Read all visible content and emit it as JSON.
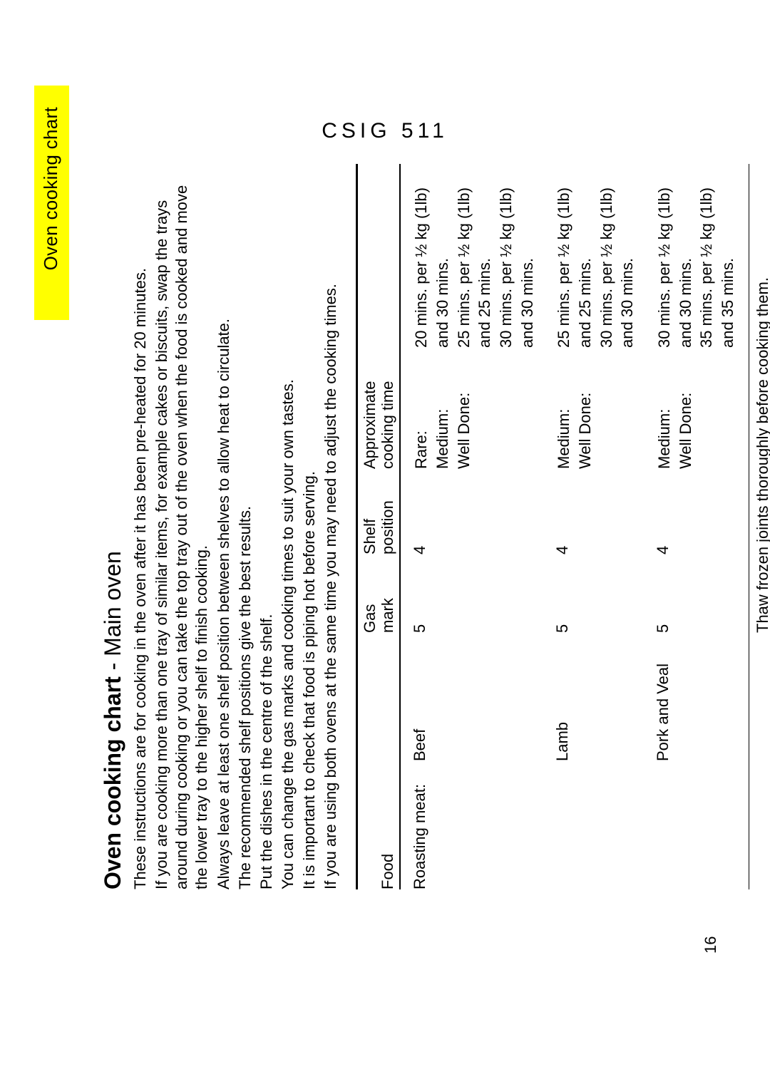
{
  "tab_label": "Oven cooking chart",
  "model_code": "CSIG 511",
  "page_number": "16",
  "title_bold": "Oven cooking chart",
  "title_rest": " - Main oven",
  "instructions": [
    "These instructions are for cooking in the oven after it has been pre-heated for 20 minutes.",
    "If you are cooking more than one tray of similar items, for example cakes or biscuits, swap the trays around during cooking or you can take the top tray out of the oven when the food is cooked and move the lower tray to the higher shelf to finish cooking.",
    "Always leave at least one shelf position between shelves to allow heat to circulate.",
    "The recommended shelf positions give the best results.",
    "Put the dishes in the centre of the shelf.",
    "You can change the gas marks and cooking times to suit your own tastes.",
    "It is important to check that food is piping hot before serving.",
    "If you are using both ovens at the same time you may need to adjust the cooking times."
  ],
  "chart": {
    "columns": {
      "food": "Food",
      "blank": "",
      "gas_mark_l1": "Gas",
      "gas_mark_l2": "mark",
      "shelf_l1": "Shelf",
      "shelf_l2": "position",
      "time_l1": "Approximate",
      "time_l2": "cooking time"
    },
    "rows": [
      {
        "category": "Roasting meat:",
        "item": "Beef",
        "gas_mark": "5",
        "shelf": "4",
        "doneness": [
          "Rare:",
          "Medium:",
          "Well Done:"
        ],
        "times": [
          "20 mins. per ½ kg (1lb) and 30 mins.",
          "25 mins. per ½ kg (1lb) and 25 mins.",
          "30 mins. per ½ kg (1lb) and 30 mins."
        ]
      },
      {
        "category": "",
        "item": "Lamb",
        "gas_mark": "5",
        "shelf": "4",
        "doneness": [
          "Medium:",
          "Well Done:"
        ],
        "times": [
          "25 mins. per ½ kg (1lb) and 25 mins.",
          "30 mins. per ½ kg (1lb) and 30 mins."
        ]
      },
      {
        "category": "",
        "item": "Pork and Veal",
        "gas_mark": "5",
        "shelf": "4",
        "doneness": [
          "Medium:",
          "Well Done:"
        ],
        "times": [
          "30 mins. per ½ kg (1lb) and 30 mins.",
          "35 mins. per ½ kg (1lb) and 35 mins."
        ]
      }
    ],
    "footnote": "Thaw frozen joints thoroughly before cooking them."
  }
}
